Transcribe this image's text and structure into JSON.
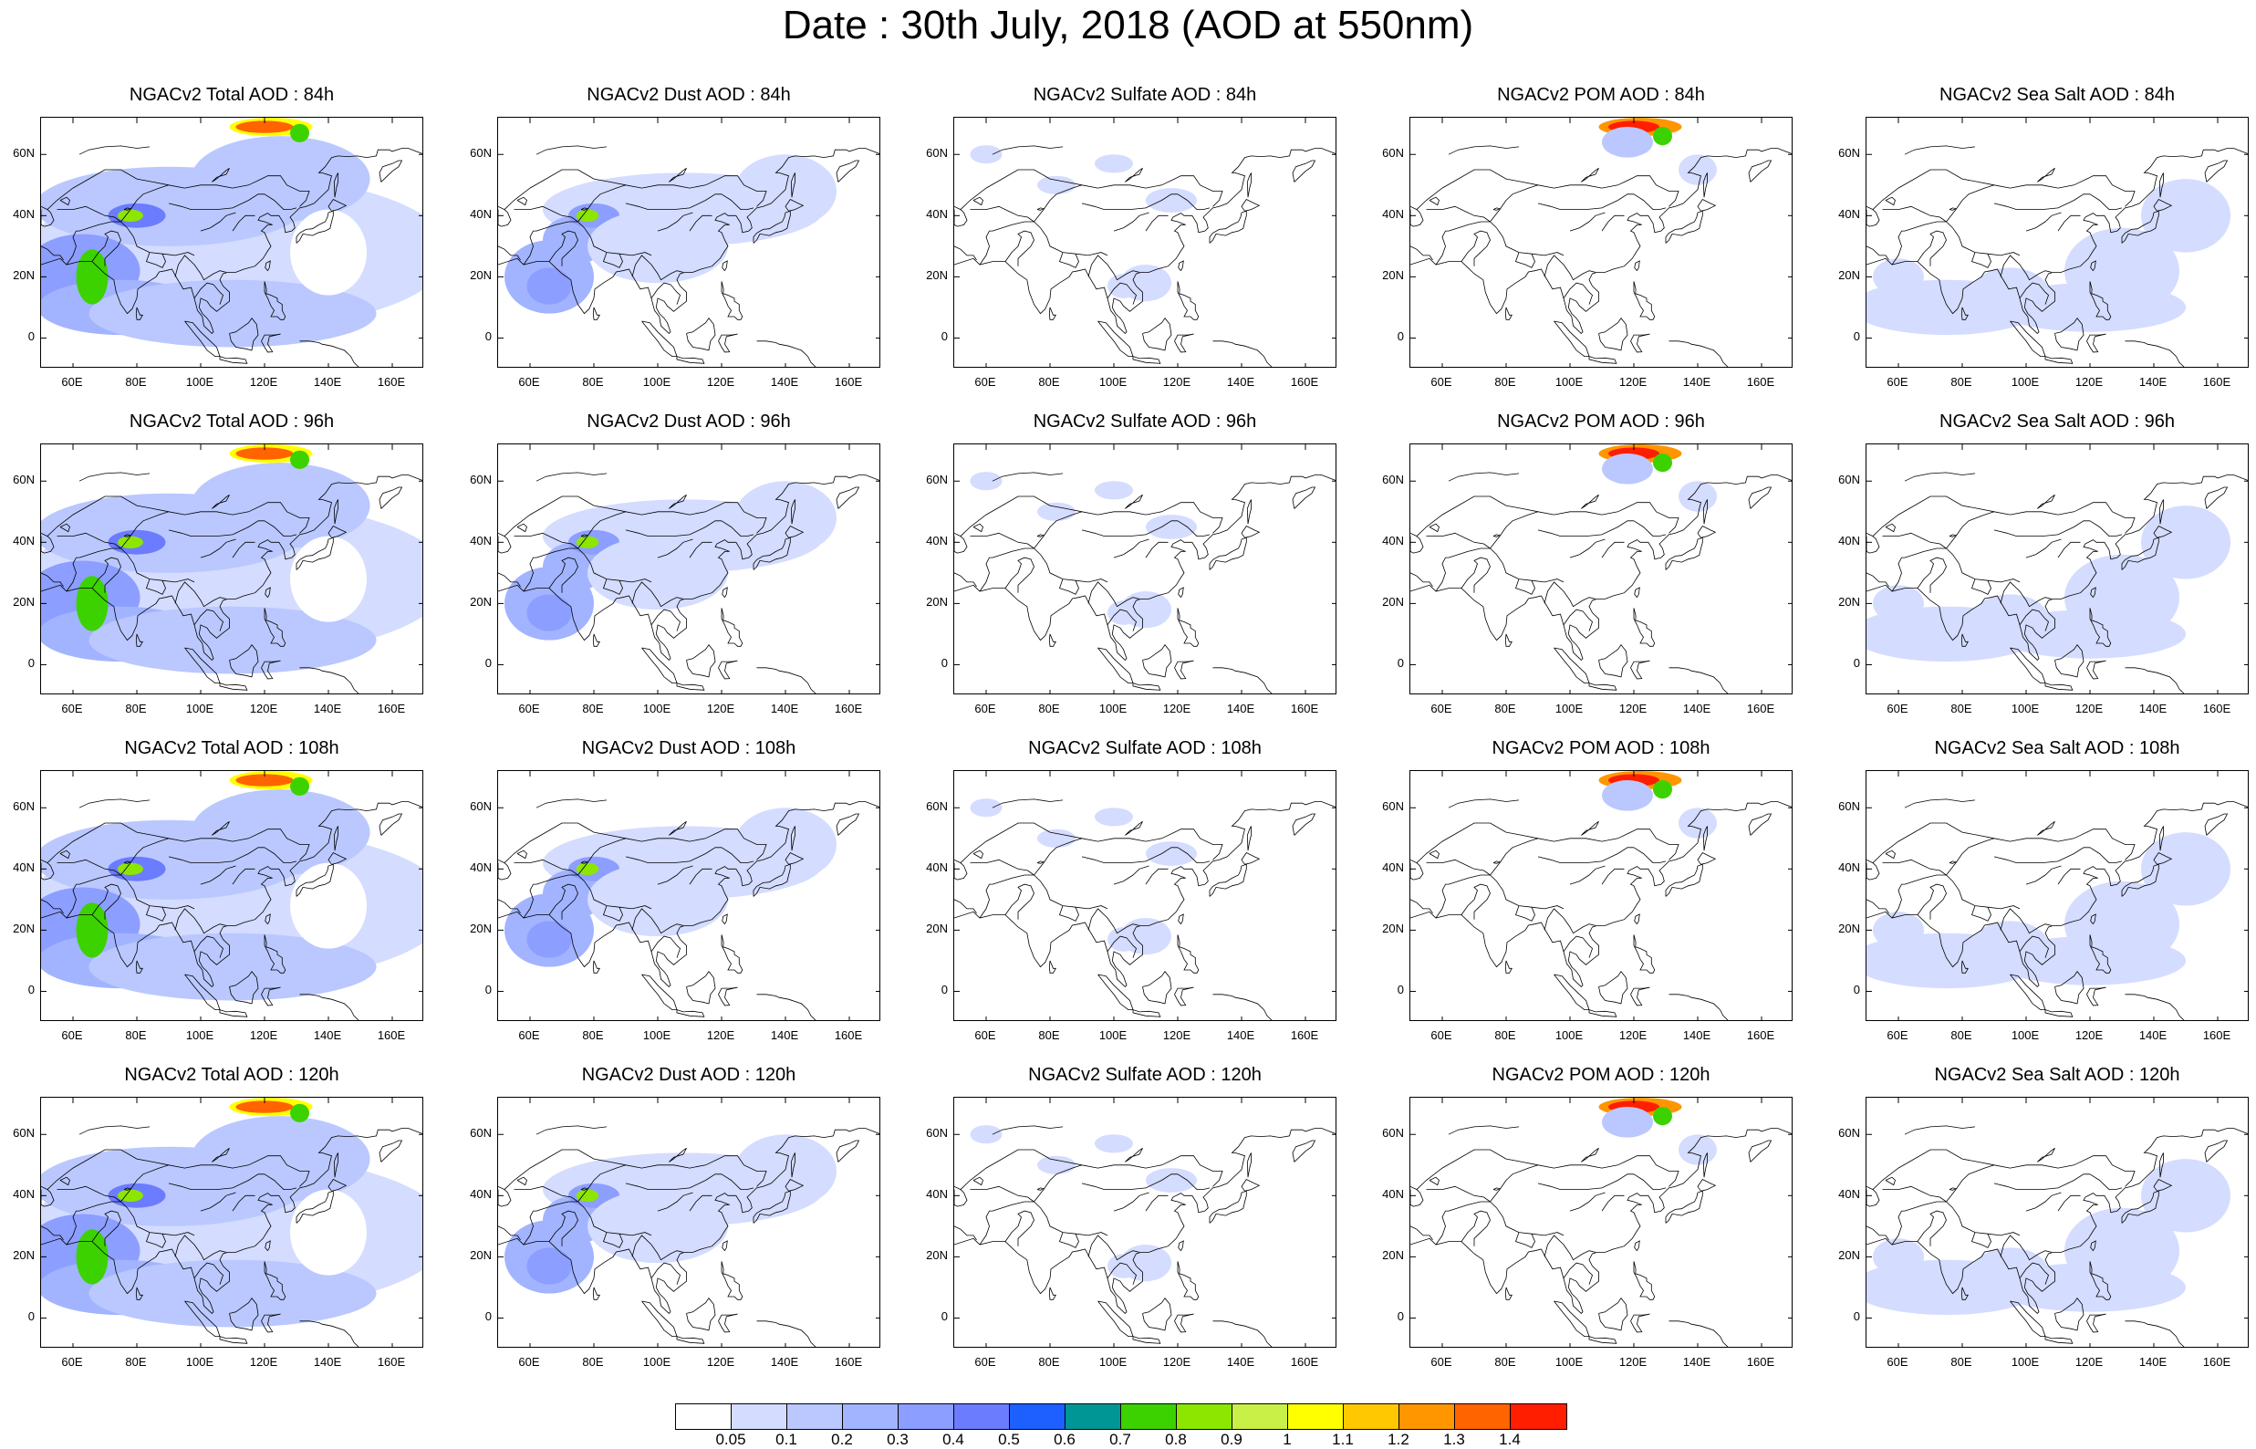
{
  "title": "Date : 30th July, 2018 (AOD at 550nm)",
  "panels": [
    [
      "NGACv2 Total AOD : 84h",
      "NGACv2 Dust AOD : 84h",
      "NGACv2 Sulfate AOD : 84h",
      "NGACv2 POM AOD : 84h",
      "NGACv2 Sea Salt AOD : 84h"
    ],
    [
      "NGACv2 Total AOD : 96h",
      "NGACv2 Dust AOD : 96h",
      "NGACv2 Sulfate AOD : 96h",
      "NGACv2 POM AOD : 96h",
      "NGACv2 Sea Salt AOD : 96h"
    ],
    [
      "NGACv2 Total AOD : 108h",
      "NGACv2 Dust AOD : 108h",
      "NGACv2 Sulfate AOD : 108h",
      "NGACv2 POM AOD : 108h",
      "NGACv2 Sea Salt AOD : 108h"
    ],
    [
      "NGACv2 Total AOD : 120h",
      "NGACv2 Dust AOD : 120h",
      "NGACv2 Sulfate AOD : 120h",
      "NGACv2 POM AOD : 120h",
      "NGACv2 Sea Salt  AOD : 120h"
    ]
  ],
  "panel_types": [
    "total",
    "dust",
    "sulfate",
    "pom",
    "seasalt"
  ],
  "lat_ticks": [
    "60N",
    "40N",
    "20N",
    "0"
  ],
  "lon_ticks": [
    "60E",
    "80E",
    "100E",
    "120E",
    "140E",
    "160E"
  ],
  "colorbar": {
    "labels": [
      "0.05",
      "0.1",
      "0.2",
      "0.3",
      "0.4",
      "0.5",
      "0.6",
      "0.7",
      "0.8",
      "0.9",
      "1",
      "1.1",
      "1.2",
      "1.3",
      "1.4"
    ],
    "colors": [
      "#ffffff",
      "#d4dcff",
      "#bac8ff",
      "#a2b4ff",
      "#8c9eff",
      "#6c7cff",
      "#1e60ff",
      "#009696",
      "#3cd200",
      "#8ce600",
      "#c8f046",
      "#ffff00",
      "#ffc800",
      "#ff9600",
      "#ff6400",
      "#ff1e00"
    ]
  }
}
